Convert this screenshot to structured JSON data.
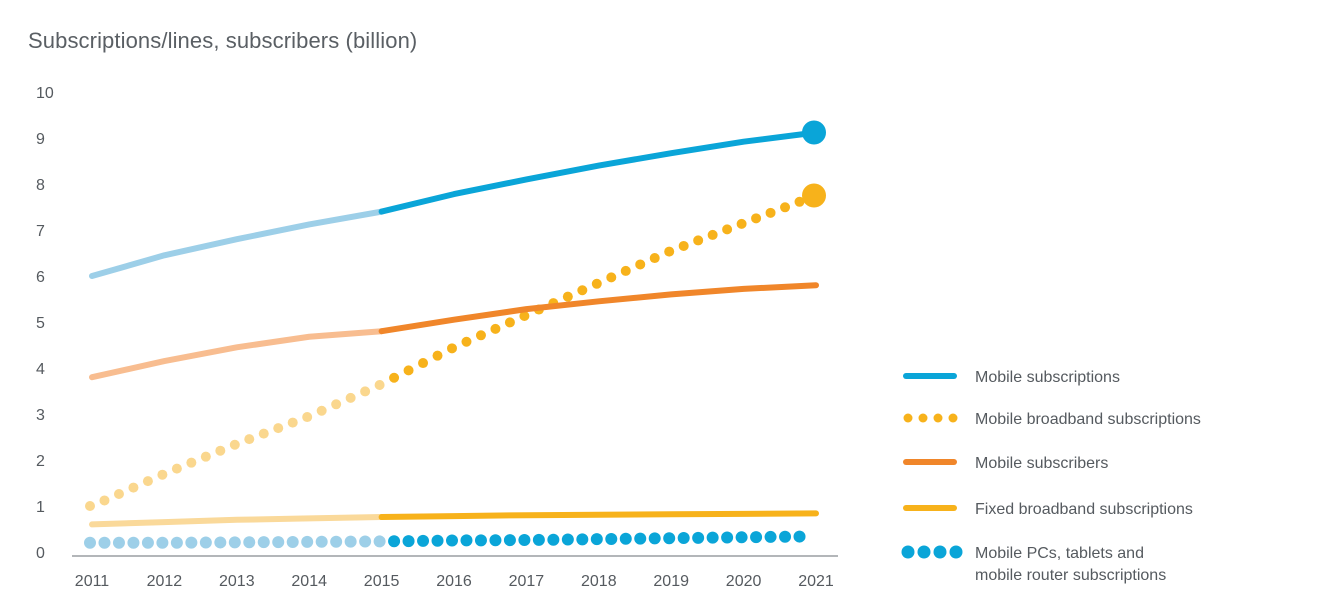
{
  "chart_data": {
    "type": "line",
    "title": "Subscriptions/lines, subscribers (billion)",
    "xlabel": "",
    "ylabel": "",
    "x": [
      2011,
      2012,
      2013,
      2014,
      2015,
      2016,
      2017,
      2018,
      2019,
      2020,
      2021
    ],
    "ylim": [
      0,
      10
    ],
    "yticks": [
      0,
      1,
      2,
      3,
      4,
      5,
      6,
      7,
      8,
      9,
      10
    ],
    "grid": false,
    "legend_position": "right",
    "forecast_start": 2015,
    "series": [
      {
        "name": "Mobile subscriptions",
        "style": "solid",
        "color": "#0aa5d8",
        "color_historic": "#9dcfe8",
        "values": [
          6.0,
          6.45,
          6.8,
          7.12,
          7.4,
          7.78,
          8.1,
          8.4,
          8.67,
          8.92,
          9.12
        ],
        "end_marker": true
      },
      {
        "name": "Mobile broadband subscriptions",
        "style": "dotted",
        "color": "#f7b21b",
        "color_historic": "#fad78e",
        "values": [
          1.0,
          1.7,
          2.35,
          2.95,
          3.65,
          4.45,
          5.15,
          5.85,
          6.55,
          7.15,
          7.75
        ],
        "end_marker": true
      },
      {
        "name": "Mobile subscribers",
        "style": "solid",
        "color": "#f0862a",
        "color_historic": "#f8bd90",
        "values": [
          3.8,
          4.15,
          4.45,
          4.68,
          4.8,
          5.05,
          5.28,
          5.45,
          5.6,
          5.72,
          5.8
        ],
        "end_marker": false
      },
      {
        "name": "Fixed broadband subscriptions",
        "style": "solid",
        "color": "#f7b21b",
        "color_historic": "#fad99a",
        "values": [
          0.6,
          0.65,
          0.7,
          0.73,
          0.76,
          0.78,
          0.8,
          0.81,
          0.82,
          0.83,
          0.84
        ],
        "end_marker": false
      },
      {
        "name": "Mobile PCs, tablets and mobile router subscriptions",
        "name_lines": [
          "Mobile PCs, tablets and",
          "mobile router subscriptions"
        ],
        "style": "dotted",
        "color": "#0aa5d8",
        "color_historic": "#9dcfe8",
        "values": [
          0.2,
          0.2,
          0.21,
          0.22,
          0.23,
          0.25,
          0.26,
          0.28,
          0.3,
          0.32,
          0.34
        ],
        "end_marker": false
      }
    ]
  },
  "colors": {
    "axis": "#9a9ea2",
    "text": "#555a5f"
  }
}
